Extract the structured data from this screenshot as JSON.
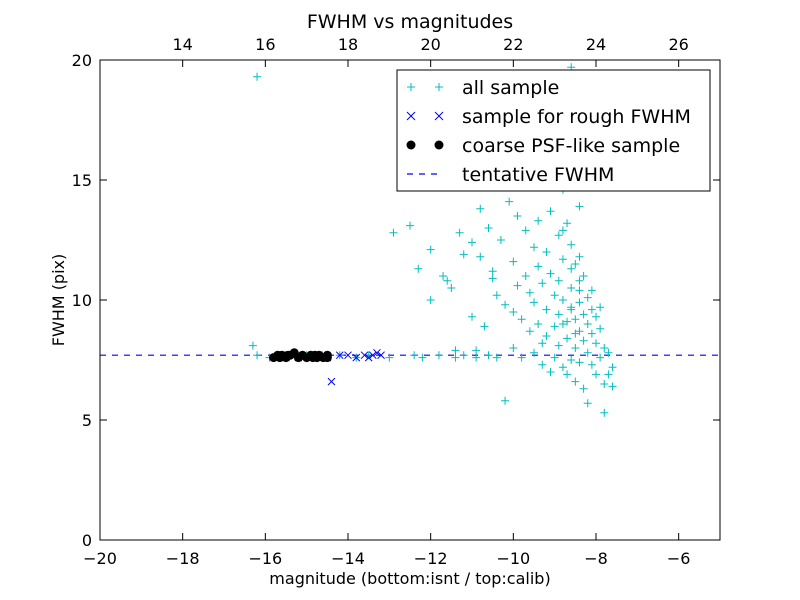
{
  "chart_data": {
    "type": "scatter",
    "title": "FWHM vs magnitudes",
    "xlabel": "magnitude (bottom:isnt / top:calib)",
    "ylabel": "FWHM (pix)",
    "xlim": [
      -20,
      -5
    ],
    "ylim": [
      0,
      20
    ],
    "x_ticks": [
      -20,
      -18,
      -16,
      -14,
      -12,
      -10,
      -8,
      -6
    ],
    "x_tick_labels": [
      "−20",
      "−18",
      "−16",
      "−14",
      "−12",
      "−10",
      "−8",
      "−6"
    ],
    "y_ticks": [
      0,
      5,
      10,
      15,
      20
    ],
    "y_tick_labels": [
      "0",
      "5",
      "10",
      "15",
      "20"
    ],
    "top_axis": {
      "ticks": [
        14,
        16,
        18,
        20,
        22,
        24,
        26
      ],
      "tick_labels": [
        "14",
        "16",
        "18",
        "20",
        "22",
        "24",
        "26"
      ],
      "offset": 32
    },
    "grid": false,
    "legend_position": "top-right",
    "tentative_fwhm": 7.7,
    "series": [
      {
        "name": "all sample",
        "marker": "plus",
        "color": "#00bfbf",
        "points": [
          [
            -16.2,
            19.3
          ],
          [
            -16.3,
            8.1
          ],
          [
            -16.2,
            7.7
          ],
          [
            -15.9,
            7.6
          ],
          [
            -15.5,
            7.7
          ],
          [
            -15.0,
            7.7
          ],
          [
            -14.6,
            7.6
          ],
          [
            -14.2,
            7.7
          ],
          [
            -13.8,
            7.6
          ],
          [
            -13.5,
            7.7
          ],
          [
            -13.0,
            7.6
          ],
          [
            -12.9,
            12.8
          ],
          [
            -12.5,
            13.1
          ],
          [
            -12.4,
            7.7
          ],
          [
            -12.3,
            11.3
          ],
          [
            -12.2,
            7.6
          ],
          [
            -12.0,
            10.0
          ],
          [
            -12.0,
            12.1
          ],
          [
            -11.8,
            7.7
          ],
          [
            -11.7,
            11.0
          ],
          [
            -11.6,
            10.8
          ],
          [
            -11.5,
            10.5
          ],
          [
            -11.4,
            7.6
          ],
          [
            -11.4,
            7.9
          ],
          [
            -11.3,
            12.8
          ],
          [
            -11.2,
            11.9
          ],
          [
            -11.2,
            7.7
          ],
          [
            -11.0,
            12.4
          ],
          [
            -11.0,
            9.3
          ],
          [
            -10.9,
            7.6
          ],
          [
            -10.9,
            7.9
          ],
          [
            -10.8,
            13.8
          ],
          [
            -10.8,
            11.8
          ],
          [
            -10.7,
            8.9
          ],
          [
            -10.6,
            7.7
          ],
          [
            -10.6,
            13.0
          ],
          [
            -10.5,
            11.2
          ],
          [
            -10.5,
            10.9
          ],
          [
            -10.4,
            10.2
          ],
          [
            -10.4,
            7.6
          ],
          [
            -10.3,
            12.5
          ],
          [
            -10.2,
            9.8
          ],
          [
            -10.2,
            5.8
          ],
          [
            -10.1,
            14.1
          ],
          [
            -10.0,
            11.6
          ],
          [
            -10.0,
            9.5
          ],
          [
            -10.0,
            8.0
          ],
          [
            -9.9,
            13.5
          ],
          [
            -9.9,
            10.6
          ],
          [
            -9.8,
            9.2
          ],
          [
            -9.8,
            7.6
          ],
          [
            -9.7,
            12.9
          ],
          [
            -9.7,
            11.0
          ],
          [
            -9.6,
            10.3
          ],
          [
            -9.6,
            8.7
          ],
          [
            -9.5,
            12.2
          ],
          [
            -9.5,
            9.9
          ],
          [
            -9.5,
            7.8
          ],
          [
            -9.4,
            13.3
          ],
          [
            -9.4,
            11.4
          ],
          [
            -9.4,
            9.0
          ],
          [
            -9.3,
            10.7
          ],
          [
            -9.3,
            8.2
          ],
          [
            -9.3,
            7.3
          ],
          [
            -9.2,
            12.0
          ],
          [
            -9.2,
            9.6
          ],
          [
            -9.2,
            8.5
          ],
          [
            -9.1,
            13.7
          ],
          [
            -9.1,
            11.1
          ],
          [
            -9.1,
            7.0
          ],
          [
            -9.0,
            10.2
          ],
          [
            -9.0,
            8.9
          ],
          [
            -9.0,
            7.6
          ],
          [
            -8.9,
            12.7
          ],
          [
            -8.9,
            9.4
          ],
          [
            -8.9,
            8.1
          ],
          [
            -8.8,
            11.7
          ],
          [
            -8.8,
            10.0
          ],
          [
            -8.8,
            7.2
          ],
          [
            -8.7,
            13.2
          ],
          [
            -8.7,
            9.1
          ],
          [
            -8.7,
            8.4
          ],
          [
            -8.7,
            6.9
          ],
          [
            -8.6,
            12.3
          ],
          [
            -8.6,
            10.5
          ],
          [
            -8.6,
            9.7
          ],
          [
            -8.6,
            7.5
          ],
          [
            -8.5,
            11.5
          ],
          [
            -8.5,
            9.2
          ],
          [
            -8.5,
            8.0
          ],
          [
            -8.5,
            6.6
          ],
          [
            -8.4,
            10.8
          ],
          [
            -8.4,
            9.9
          ],
          [
            -8.4,
            8.7
          ],
          [
            -8.4,
            7.4
          ],
          [
            -8.3,
            11.0
          ],
          [
            -8.3,
            9.4
          ],
          [
            -8.3,
            8.3
          ],
          [
            -8.3,
            6.3
          ],
          [
            -8.2,
            10.1
          ],
          [
            -8.2,
            9.0
          ],
          [
            -8.2,
            7.8
          ],
          [
            -8.2,
            5.7
          ],
          [
            -8.1,
            9.6
          ],
          [
            -8.1,
            8.6
          ],
          [
            -8.1,
            7.3
          ],
          [
            -8.0,
            9.3
          ],
          [
            -8.0,
            8.2
          ],
          [
            -8.0,
            6.9
          ],
          [
            -7.9,
            8.8
          ],
          [
            -7.9,
            7.6
          ],
          [
            -7.8,
            8.0
          ],
          [
            -7.8,
            6.5
          ],
          [
            -7.7,
            7.8
          ],
          [
            -7.7,
            6.9
          ],
          [
            -7.6,
            7.2
          ],
          [
            -7.6,
            6.4
          ],
          [
            -7.8,
            5.3
          ],
          [
            -7.9,
            9.7
          ],
          [
            -8.1,
            10.4
          ],
          [
            -8.6,
            15.8
          ],
          [
            -8.8,
            14.6
          ],
          [
            -9.0,
            15.3
          ],
          [
            -8.5,
            16.6
          ],
          [
            -8.7,
            17.9
          ],
          [
            -8.6,
            19.7
          ],
          [
            -9.6,
            14.9
          ],
          [
            -10.1,
            15.9
          ],
          [
            -10.7,
            19.4
          ],
          [
            -10.4,
            17.1
          ],
          [
            -11.2,
            15.9
          ],
          [
            -9.8,
            16.4
          ],
          [
            -9.3,
            18.6
          ],
          [
            -8.9,
            19.1
          ],
          [
            -9.3,
            14.8
          ],
          [
            -8.4,
            13.9
          ],
          [
            -8.8,
            12.9
          ],
          [
            -8.4,
            11.8
          ],
          [
            -8.6,
            11.3
          ],
          [
            -8.9,
            10.8
          ],
          [
            -8.4,
            10.4
          ],
          [
            -8.6,
            9.6
          ],
          [
            -8.8,
            9.0
          ],
          [
            -8.5,
            8.6
          ]
        ]
      },
      {
        "name": "sample for rough FWHM",
        "marker": "x",
        "color": "#0000ff",
        "points": [
          [
            -15.7,
            7.6
          ],
          [
            -15.6,
            7.7
          ],
          [
            -15.5,
            7.6
          ],
          [
            -15.3,
            7.7
          ],
          [
            -15.2,
            7.6
          ],
          [
            -15.0,
            7.7
          ],
          [
            -14.8,
            7.6
          ],
          [
            -14.7,
            7.7
          ],
          [
            -14.5,
            7.6
          ],
          [
            -14.4,
            6.6
          ],
          [
            -14.2,
            7.7
          ],
          [
            -14.0,
            7.7
          ],
          [
            -13.8,
            7.6
          ],
          [
            -13.6,
            7.7
          ],
          [
            -13.5,
            7.6
          ],
          [
            -13.4,
            7.7
          ],
          [
            -13.3,
            7.8
          ],
          [
            -13.2,
            7.7
          ]
        ]
      },
      {
        "name": "coarse PSF-like sample",
        "marker": "circle",
        "color": "#000000",
        "points": [
          [
            -15.8,
            7.6
          ],
          [
            -15.7,
            7.7
          ],
          [
            -15.65,
            7.6
          ],
          [
            -15.6,
            7.7
          ],
          [
            -15.5,
            7.6
          ],
          [
            -15.45,
            7.7
          ],
          [
            -15.4,
            7.7
          ],
          [
            -15.3,
            7.8
          ],
          [
            -15.2,
            7.6
          ],
          [
            -15.1,
            7.7
          ],
          [
            -15.0,
            7.6
          ],
          [
            -14.9,
            7.7
          ],
          [
            -14.85,
            7.6
          ],
          [
            -14.8,
            7.7
          ],
          [
            -14.75,
            7.6
          ],
          [
            -14.7,
            7.7
          ],
          [
            -14.6,
            7.6
          ],
          [
            -14.5,
            7.7
          ],
          [
            -14.5,
            7.6
          ]
        ]
      },
      {
        "name": "tentative FWHM",
        "marker": "dashed-line",
        "color": "#0000ff",
        "points": [
          [
            -20,
            7.7
          ],
          [
            -5,
            7.7
          ]
        ]
      }
    ]
  }
}
